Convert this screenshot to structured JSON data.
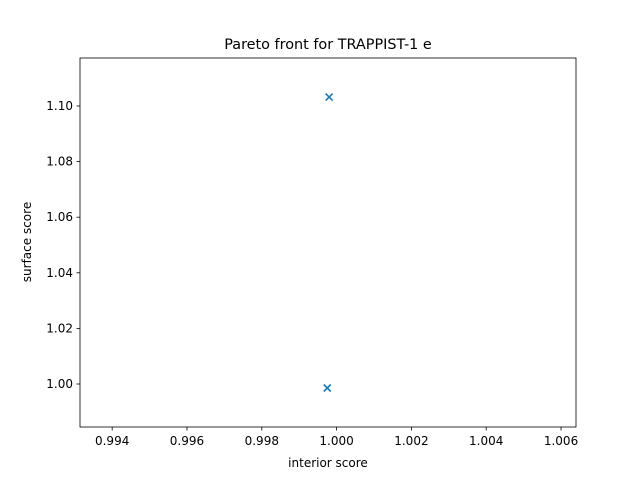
{
  "chart_data": {
    "type": "scatter",
    "title": "Pareto front for TRAPPIST-1 e",
    "xlabel": "interior score",
    "ylabel": "surface score",
    "series": [
      {
        "color": "#1f77b4",
        "marker": "x",
        "x": [
          0.9998,
          0.99975
        ],
        "values": [
          1.1032,
          0.99856
        ]
      }
    ],
    "xlim": [
      0.99314,
      1.0064
    ],
    "xticks": [
      0.994,
      0.996,
      0.998,
      {
        "value": 1.0,
        "label": "1.000"
      },
      1.002,
      1.004,
      1.006
    ],
    "ylim": [
      0.98453,
      1.11727
    ],
    "yticks": [
      {
        "value": 1.0,
        "label": "1.00"
      },
      1.02,
      1.04,
      1.06,
      1.08,
      {
        "value": 1.1,
        "label": "1.10"
      }
    ],
    "grid": false
  }
}
